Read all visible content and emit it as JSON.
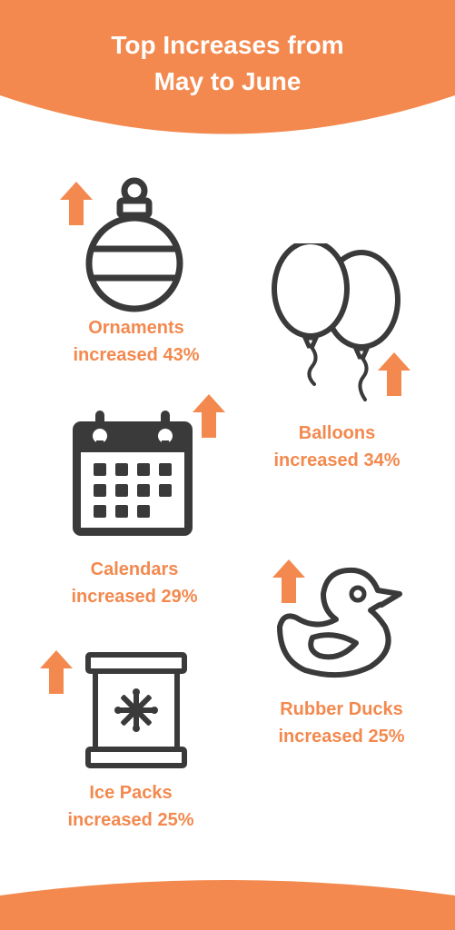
{
  "title": {
    "line1": "Top Increases from",
    "line2": "May to June"
  },
  "colors": {
    "accent": "#f3894e",
    "icon": "#3a3a3a",
    "background": "#ffffff"
  },
  "items": [
    {
      "name": "Ornaments",
      "line1": "Ornaments",
      "line2": "increased 43%",
      "value_percent": 43,
      "icon": "ornament-icon"
    },
    {
      "name": "Balloons",
      "line1": "Balloons",
      "line2": "increased 34%",
      "value_percent": 34,
      "icon": "balloons-icon"
    },
    {
      "name": "Calendars",
      "line1": "Calendars",
      "line2": "increased 29%",
      "value_percent": 29,
      "icon": "calendar-icon"
    },
    {
      "name": "Rubber Ducks",
      "line1": "Rubber Ducks",
      "line2": "increased 25%",
      "value_percent": 25,
      "icon": "rubber-duck-icon"
    },
    {
      "name": "Ice Packs",
      "line1": "Ice Packs",
      "line2": "increased 25%",
      "value_percent": 25,
      "icon": "ice-pack-icon"
    }
  ]
}
